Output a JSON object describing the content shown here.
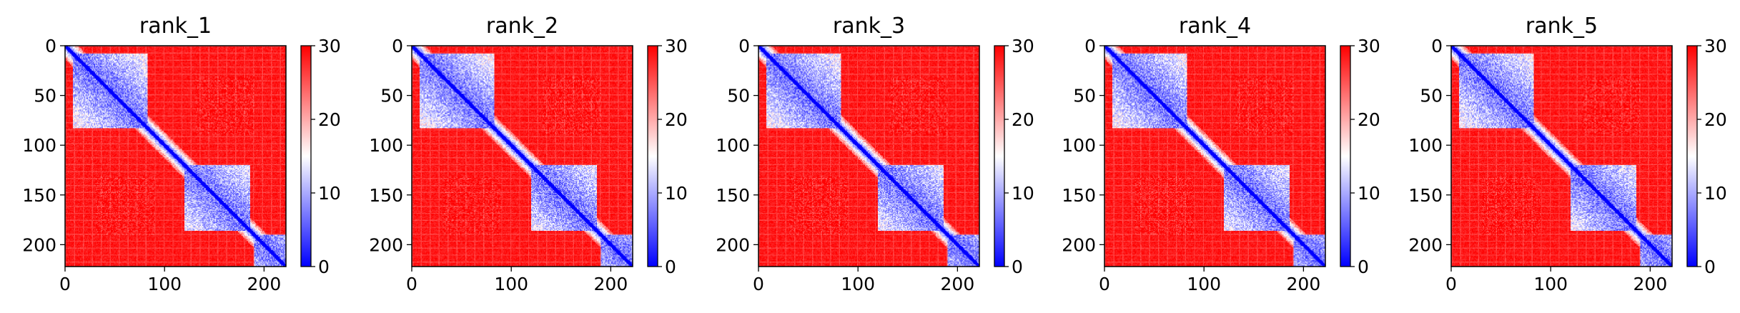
{
  "chart_data": [
    {
      "type": "heatmap",
      "title": "rank_1",
      "xlabel": "",
      "ylabel": "",
      "size": 222,
      "xlim": [
        0,
        222
      ],
      "ylim": [
        222,
        0
      ],
      "x_ticks": [
        0,
        100,
        200
      ],
      "y_ticks": [
        0,
        50,
        100,
        150,
        200
      ],
      "colorbar": {
        "min": 0,
        "max": 30,
        "ticks": [
          0,
          10,
          20,
          30
        ],
        "colormap": "bwr",
        "colors": [
          "#0000ff",
          "#ffffff",
          "#ff0000"
        ]
      },
      "domains": [
        [
          8,
          82
        ],
        [
          120,
          185
        ],
        [
          190,
          222
        ]
      ],
      "legend": "none"
    },
    {
      "type": "heatmap",
      "title": "rank_2",
      "xlabel": "",
      "ylabel": "",
      "size": 222,
      "xlim": [
        0,
        222
      ],
      "ylim": [
        222,
        0
      ],
      "x_ticks": [
        0,
        100,
        200
      ],
      "y_ticks": [
        0,
        50,
        100,
        150,
        200
      ],
      "colorbar": {
        "min": 0,
        "max": 30,
        "ticks": [
          0,
          10,
          20,
          30
        ],
        "colormap": "bwr",
        "colors": [
          "#0000ff",
          "#ffffff",
          "#ff0000"
        ]
      },
      "domains": [
        [
          8,
          82
        ],
        [
          120,
          185
        ],
        [
          190,
          222
        ]
      ],
      "legend": "none"
    },
    {
      "type": "heatmap",
      "title": "rank_3",
      "xlabel": "",
      "ylabel": "",
      "size": 222,
      "xlim": [
        0,
        222
      ],
      "ylim": [
        222,
        0
      ],
      "x_ticks": [
        0,
        100,
        200
      ],
      "y_ticks": [
        0,
        50,
        100,
        150,
        200
      ],
      "colorbar": {
        "min": 0,
        "max": 30,
        "ticks": [
          0,
          10,
          20,
          30
        ],
        "colormap": "bwr",
        "colors": [
          "#0000ff",
          "#ffffff",
          "#ff0000"
        ]
      },
      "domains": [
        [
          8,
          82
        ],
        [
          120,
          185
        ],
        [
          190,
          222
        ]
      ],
      "legend": "none"
    },
    {
      "type": "heatmap",
      "title": "rank_4",
      "xlabel": "",
      "ylabel": "",
      "size": 222,
      "xlim": [
        0,
        222
      ],
      "ylim": [
        222,
        0
      ],
      "x_ticks": [
        0,
        100,
        200
      ],
      "y_ticks": [
        0,
        50,
        100,
        150,
        200
      ],
      "colorbar": {
        "min": 0,
        "max": 30,
        "ticks": [
          0,
          10,
          20,
          30
        ],
        "colormap": "bwr",
        "colors": [
          "#0000ff",
          "#ffffff",
          "#ff0000"
        ]
      },
      "domains": [
        [
          8,
          82
        ],
        [
          120,
          185
        ],
        [
          190,
          222
        ]
      ],
      "legend": "none"
    },
    {
      "type": "heatmap",
      "title": "rank_5",
      "xlabel": "",
      "ylabel": "",
      "size": 222,
      "xlim": [
        0,
        222
      ],
      "ylim": [
        222,
        0
      ],
      "x_ticks": [
        0,
        100,
        200
      ],
      "y_ticks": [
        0,
        50,
        100,
        150,
        200
      ],
      "colorbar": {
        "min": 0,
        "max": 30,
        "ticks": [
          0,
          10,
          20,
          30
        ],
        "colormap": "bwr",
        "colors": [
          "#0000ff",
          "#ffffff",
          "#ff0000"
        ]
      },
      "domains": [
        [
          8,
          82
        ],
        [
          120,
          185
        ],
        [
          190,
          222
        ]
      ],
      "legend": "none"
    }
  ]
}
